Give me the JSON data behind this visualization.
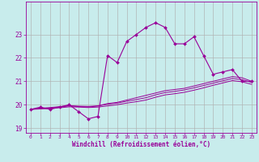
{
  "background_color": "#c8ecec",
  "grid_color": "#b0b0b0",
  "line_color": "#990099",
  "x_hours": [
    0,
    1,
    2,
    3,
    4,
    5,
    6,
    7,
    8,
    9,
    10,
    11,
    12,
    13,
    14,
    15,
    16,
    17,
    18,
    19,
    20,
    21,
    22,
    23
  ],
  "series1": [
    19.8,
    19.9,
    19.8,
    19.9,
    20.0,
    19.7,
    19.4,
    19.5,
    22.1,
    21.8,
    22.7,
    23.0,
    23.3,
    23.5,
    23.3,
    22.6,
    22.6,
    22.9,
    22.1,
    21.3,
    21.4,
    21.5,
    21.0,
    21.0
  ],
  "series2": [
    19.8,
    19.85,
    19.85,
    19.9,
    19.95,
    19.92,
    19.9,
    19.95,
    20.05,
    20.1,
    20.2,
    20.3,
    20.4,
    20.5,
    20.6,
    20.65,
    20.7,
    20.8,
    20.9,
    21.0,
    21.1,
    21.2,
    21.15,
    21.0
  ],
  "series3": [
    19.8,
    19.85,
    19.88,
    19.92,
    19.96,
    19.94,
    19.93,
    19.95,
    20.02,
    20.07,
    20.15,
    20.22,
    20.3,
    20.42,
    20.52,
    20.57,
    20.63,
    20.72,
    20.82,
    20.92,
    21.02,
    21.12,
    21.07,
    20.95
  ],
  "series4": [
    19.8,
    19.82,
    19.84,
    19.87,
    19.91,
    19.9,
    19.88,
    19.9,
    19.95,
    20.0,
    20.07,
    20.13,
    20.2,
    20.32,
    20.42,
    20.47,
    20.53,
    20.62,
    20.72,
    20.83,
    20.93,
    21.03,
    20.98,
    20.87
  ],
  "ylim": [
    18.8,
    24.4
  ],
  "yticks": [
    19,
    20,
    21,
    22,
    23
  ],
  "xlim": [
    -0.5,
    23.5
  ],
  "xticks": [
    0,
    1,
    2,
    3,
    4,
    5,
    6,
    7,
    8,
    9,
    10,
    11,
    12,
    13,
    14,
    15,
    16,
    17,
    18,
    19,
    20,
    21,
    22,
    23
  ],
  "xlabel": "Windchill (Refroidissement éolien,°C)"
}
